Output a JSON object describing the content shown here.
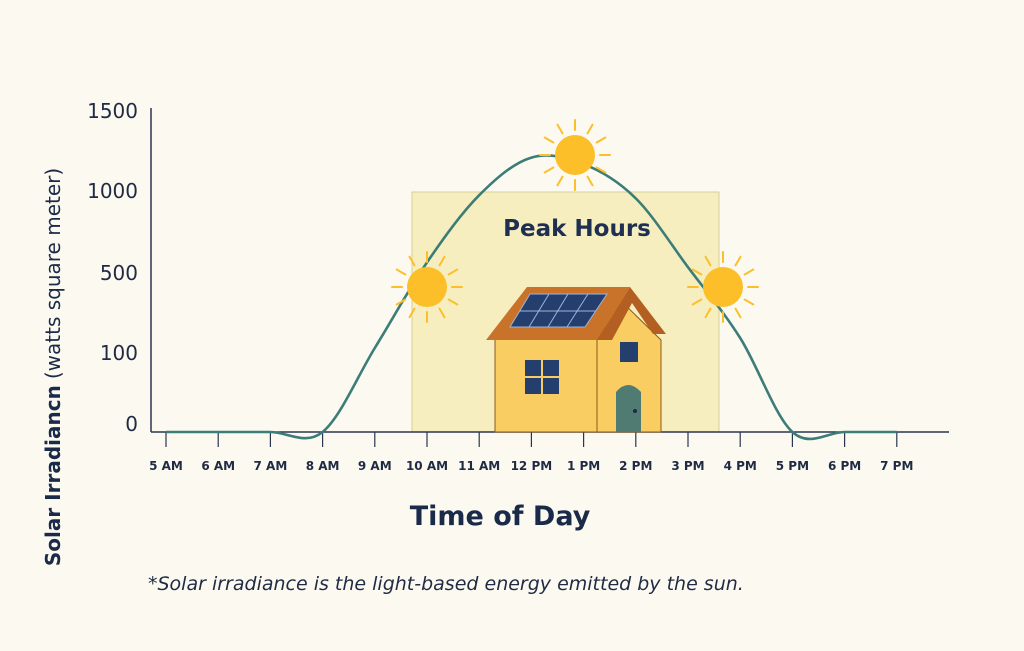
{
  "chart_data": {
    "type": "line",
    "title": "",
    "xlabel": "Time of Day",
    "ylabel_bold": "Solar Irradiancn",
    "ylabel_paren": "(watts square meter)",
    "y_ticks": [
      "1500",
      "1000",
      "500",
      "100",
      "0"
    ],
    "categories": [
      "5 AM",
      "6 AM",
      "7 AM",
      "8 AM",
      "9 AM",
      "10 AM",
      "11 AM",
      "12 PM",
      "1 PM",
      "2 PM",
      "3 PM",
      "4 PM",
      "5 PM",
      "6 PM",
      "7 PM"
    ],
    "series": [
      {
        "values": [
          0,
          0,
          0,
          0,
          120,
          560,
          980,
          1210,
          1170,
          960,
          530,
          170,
          0,
          0,
          0
        ]
      }
    ],
    "peak_band": {
      "label": "Peak Hours",
      "start": "10 AM",
      "end": "3 PM"
    },
    "grid": false,
    "colors": {
      "curve": "#3c7d77",
      "band": "#f7eebf",
      "sun": "#fcbf2a",
      "axis": "#2b3550"
    }
  },
  "footnote": "*Solar irradiance is the light-based energy emitted by the sun."
}
